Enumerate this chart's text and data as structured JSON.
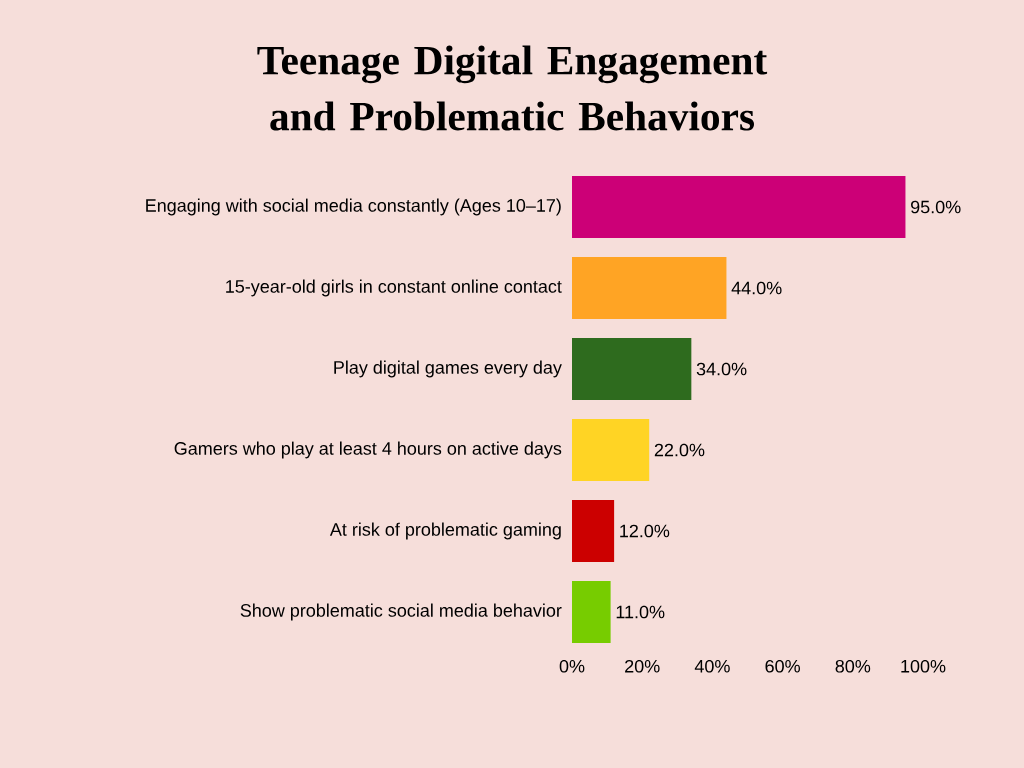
{
  "chart_data": {
    "type": "bar",
    "orientation": "horizontal",
    "title": "Teenage Digital Engagement and Problematic Behaviors",
    "categories": [
      "Engaging with social media constantly (Ages 10–17)",
      "15-year-old girls in constant online contact",
      "Play digital games every day",
      "Gamers who play at least 4 hours on active days",
      "At risk of problematic gaming",
      "Show problematic social media behavior"
    ],
    "values": [
      95,
      44,
      34,
      22,
      12,
      11
    ],
    "colors": [
      "#cc0077",
      "#ffa424",
      "#2e6b1e",
      "#ffd424",
      "#cc0000",
      "#77cc00"
    ],
    "value_labels": [
      "95.0%",
      "44.0%",
      "34.0%",
      "22.0%",
      "12.0%",
      "11.0%"
    ],
    "xlim": [
      0,
      100
    ],
    "xticks": [
      {
        "value": 0,
        "label": "0%"
      },
      {
        "value": 20,
        "label": "20%"
      },
      {
        "value": 40,
        "label": "40%"
      },
      {
        "value": 60,
        "label": "60%"
      },
      {
        "value": 80,
        "label": "80%"
      },
      {
        "value": 100,
        "label": "100%"
      }
    ]
  }
}
